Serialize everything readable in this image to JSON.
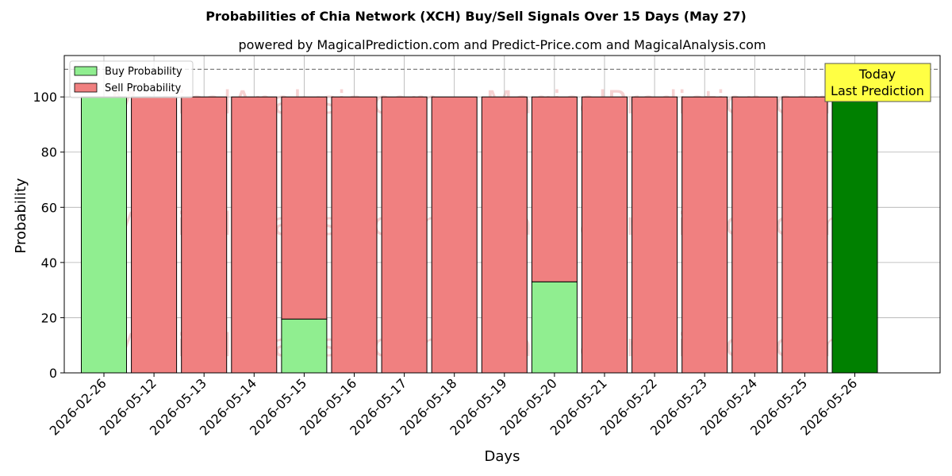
{
  "chart_data": {
    "type": "bar",
    "title": "Probabilities of Chia Network (XCH) Buy/Sell Signals Over 15 Days (May 27)",
    "subtitle": "powered by MagicalPrediction.com and Predict-Price.com and MagicalAnalysis.com",
    "xlabel": "Days",
    "ylabel": "Probability",
    "ylim": [
      0,
      115
    ],
    "yticks": [
      0,
      20,
      40,
      60,
      80,
      100
    ],
    "grid": true,
    "reference_line": 110,
    "categories": [
      "2026-02-26",
      "2026-05-12",
      "2026-05-13",
      "2026-05-14",
      "2026-05-15",
      "2026-05-16",
      "2026-05-17",
      "2026-05-18",
      "2026-05-19",
      "2026-05-20",
      "2026-05-21",
      "2026-05-22",
      "2026-05-23",
      "2026-05-24",
      "2026-05-25",
      "2026-05-26"
    ],
    "series": [
      {
        "name": "Buy Probability",
        "color": "#90ee90",
        "values": [
          100,
          0,
          0,
          0,
          19.5,
          0,
          0,
          0,
          0,
          33,
          0,
          0,
          0,
          0,
          0,
          100
        ]
      },
      {
        "name": "Sell Probability",
        "color": "#f08080",
        "values": [
          0,
          100,
          100,
          100,
          80.5,
          100,
          100,
          100,
          100,
          67,
          100,
          100,
          100,
          100,
          100,
          0
        ]
      }
    ],
    "highlight": {
      "category": "2026-05-26",
      "color": "#008000"
    },
    "legend": {
      "position": "top-left",
      "entries": [
        "Buy Probability",
        "Sell Probability"
      ]
    },
    "annotation": {
      "lines": [
        "Today",
        "Last Prediction"
      ],
      "position": "top-right",
      "background": "#ffff44"
    },
    "watermarks": [
      "MagicalAnalysis.com",
      "MagicalPrediction.com"
    ]
  }
}
